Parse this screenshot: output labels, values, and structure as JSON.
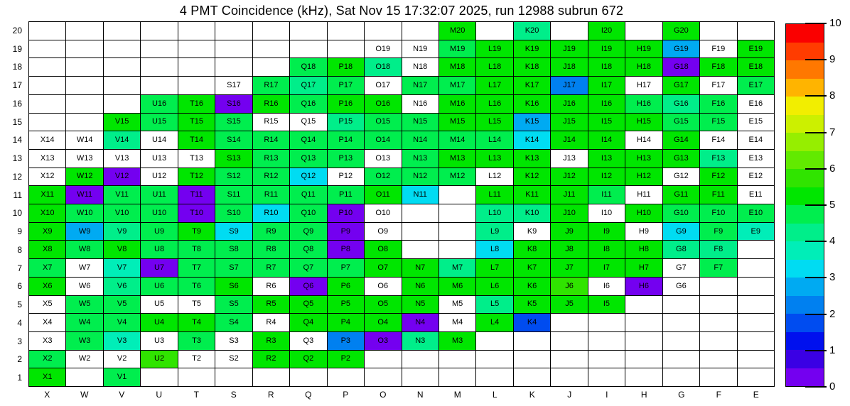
{
  "title": "4 PMT Coincidence (kHz), Sat Nov 15 17:32:07 2025, run 12988 subrun 672",
  "chart_data": {
    "type": "heatmap",
    "unit": "kHz",
    "columns": [
      "X",
      "W",
      "V",
      "U",
      "T",
      "S",
      "R",
      "Q",
      "P",
      "O",
      "N",
      "M",
      "L",
      "K",
      "J",
      "I",
      "H",
      "G",
      "F",
      "E"
    ],
    "rows": [
      20,
      19,
      18,
      17,
      16,
      15,
      14,
      13,
      12,
      11,
      10,
      9,
      8,
      7,
      6,
      5,
      4,
      3,
      2,
      1
    ],
    "value_range": [
      0,
      10
    ],
    "colorbar_ticks": [
      10,
      9,
      8,
      7,
      6,
      5,
      4,
      3,
      2,
      1,
      0
    ],
    "palette_note": "20 bins of 0.5 from value 0 (index 0) to 10 (index 19)",
    "palette": [
      "#7400f0",
      "#3a00e4",
      "#0010ee",
      "#004cf0",
      "#0080f0",
      "#00aaf2",
      "#00dcf2",
      "#00eeb8",
      "#00ee8a",
      "#00ee4e",
      "#00e600",
      "#30e400",
      "#62ea00",
      "#96ee00",
      "#ccf000",
      "#f2ee00",
      "#ffb400",
      "#ff7800",
      "#ff3c00",
      "#fa0000"
    ],
    "cells": [
      [
        null,
        null,
        null,
        null,
        null,
        null,
        null,
        null,
        null,
        null,
        null,
        [
          "M20",
          5.2
        ],
        null,
        [
          "K20",
          4.2
        ],
        null,
        [
          "I20",
          5.2
        ],
        null,
        [
          "G20",
          5.2
        ],
        null,
        null
      ],
      [
        null,
        null,
        null,
        null,
        null,
        null,
        null,
        null,
        null,
        [
          "O19",
          null
        ],
        [
          "N19",
          null
        ],
        [
          "M19",
          4.7
        ],
        [
          "L19",
          5.2
        ],
        [
          "K19",
          5.2
        ],
        [
          "J19",
          5.2
        ],
        [
          "I19",
          5.2
        ],
        [
          "H19",
          5.2
        ],
        [
          "G19",
          2.7
        ],
        [
          "F19",
          null
        ],
        [
          "E19",
          5.2
        ]
      ],
      [
        null,
        null,
        null,
        null,
        null,
        null,
        null,
        [
          "Q18",
          4.7
        ],
        [
          "P18",
          5.2
        ],
        [
          "O18",
          4.2
        ],
        [
          "N18",
          null
        ],
        [
          "M18",
          5.2
        ],
        [
          "L18",
          5.2
        ],
        [
          "K18",
          5.2
        ],
        [
          "J18",
          5.2
        ],
        [
          "I18",
          5.2
        ],
        [
          "H18",
          5.2
        ],
        [
          "G18",
          0.3
        ],
        [
          "F18",
          5.2
        ],
        [
          "E18",
          5.2
        ]
      ],
      [
        null,
        null,
        null,
        null,
        null,
        [
          "S17",
          null
        ],
        [
          "R17",
          4.7
        ],
        [
          "Q17",
          4.2
        ],
        [
          "P17",
          4.7
        ],
        [
          "O17",
          null
        ],
        [
          "N17",
          4.7
        ],
        [
          "M17",
          4.7
        ],
        [
          "L17",
          5.2
        ],
        [
          "K17",
          5.2
        ],
        [
          "J17",
          2.2
        ],
        [
          "I17",
          5.2
        ],
        [
          "H17",
          null
        ],
        [
          "G17",
          5.2
        ],
        [
          "F17",
          null
        ],
        [
          "E17",
          4.7
        ]
      ],
      [
        null,
        null,
        null,
        [
          "U16",
          4.7
        ],
        [
          "T16",
          5.2
        ],
        [
          "S16",
          0.3
        ],
        [
          "R16",
          5.2
        ],
        [
          "Q16",
          4.7
        ],
        [
          "P16",
          5.2
        ],
        [
          "O16",
          5.2
        ],
        [
          "N16",
          null
        ],
        [
          "M16",
          5.2
        ],
        [
          "L16",
          5.2
        ],
        [
          "K16",
          5.2
        ],
        [
          "J16",
          5.2
        ],
        [
          "I16",
          5.2
        ],
        [
          "H16",
          4.7
        ],
        [
          "G16",
          4.2
        ],
        [
          "F16",
          4.7
        ],
        [
          "E16",
          null
        ]
      ],
      [
        null,
        null,
        [
          "V15",
          5.2
        ],
        [
          "U15",
          4.7
        ],
        [
          "T15",
          5.2
        ],
        [
          "S15",
          4.7
        ],
        [
          "R15",
          null
        ],
        [
          "Q15",
          null
        ],
        [
          "P15",
          4.2
        ],
        [
          "O15",
          4.7
        ],
        [
          "N15",
          4.7
        ],
        [
          "M15",
          5.2
        ],
        [
          "L15",
          5.2
        ],
        [
          "K15",
          2.7
        ],
        [
          "J15",
          5.2
        ],
        [
          "I15",
          5.2
        ],
        [
          "H15",
          5.2
        ],
        [
          "G15",
          4.7
        ],
        [
          "F15",
          4.7
        ],
        [
          "E15",
          null
        ]
      ],
      [
        [
          "X14",
          null
        ],
        [
          "W14",
          null
        ],
        [
          "V14",
          4.2
        ],
        [
          "U14",
          null
        ],
        [
          "T14",
          5.2
        ],
        [
          "S14",
          4.7
        ],
        [
          "R14",
          4.7
        ],
        [
          "Q14",
          4.7
        ],
        [
          "P14",
          4.7
        ],
        [
          "O14",
          4.7
        ],
        [
          "N14",
          4.7
        ],
        [
          "M14",
          4.7
        ],
        [
          "L14",
          4.7
        ],
        [
          "K14",
          3.4
        ],
        [
          "J14",
          5.2
        ],
        [
          "I14",
          5.2
        ],
        [
          "H14",
          null
        ],
        [
          "G14",
          5.2
        ],
        [
          "F14",
          null
        ],
        [
          "E14",
          null
        ]
      ],
      [
        [
          "X13",
          null
        ],
        [
          "W13",
          null
        ],
        [
          "V13",
          null
        ],
        [
          "U13",
          null
        ],
        [
          "T13",
          null
        ],
        [
          "S13",
          5.2
        ],
        [
          "R13",
          4.7
        ],
        [
          "Q13",
          4.7
        ],
        [
          "P13",
          4.7
        ],
        [
          "O13",
          null
        ],
        [
          "N13",
          4.7
        ],
        [
          "M13",
          5.2
        ],
        [
          "L13",
          5.2
        ],
        [
          "K13",
          5.2
        ],
        [
          "J13",
          null
        ],
        [
          "I13",
          5.2
        ],
        [
          "H13",
          5.2
        ],
        [
          "G13",
          5.2
        ],
        [
          "F13",
          4.2
        ],
        [
          "E13",
          null
        ]
      ],
      [
        [
          "X12",
          null
        ],
        [
          "W12",
          5.2
        ],
        [
          "V12",
          0.3
        ],
        [
          "U12",
          null
        ],
        [
          "T12",
          5.2
        ],
        [
          "S12",
          4.7
        ],
        [
          "R12",
          4.7
        ],
        [
          "Q12",
          3.4
        ],
        [
          "P12",
          null
        ],
        [
          "O12",
          4.7
        ],
        [
          "N12",
          4.7
        ],
        [
          "M12",
          4.7
        ],
        [
          "L12",
          null
        ],
        [
          "K12",
          5.2
        ],
        [
          "J12",
          5.2
        ],
        [
          "I12",
          5.2
        ],
        [
          "H12",
          5.2
        ],
        [
          "G12",
          null
        ],
        [
          "F12",
          5.2
        ],
        [
          "E12",
          null
        ]
      ],
      [
        [
          "X11",
          5.2
        ],
        [
          "W11",
          0.3
        ],
        [
          "V11",
          4.7
        ],
        [
          "U11",
          4.7
        ],
        [
          "T11",
          0.3
        ],
        [
          "S11",
          4.7
        ],
        [
          "R11",
          4.7
        ],
        [
          "Q11",
          4.7
        ],
        [
          "P11",
          4.7
        ],
        [
          "O11",
          5.2
        ],
        [
          "N11",
          3.1
        ],
        null,
        [
          "L11",
          5.2
        ],
        [
          "K11",
          5.2
        ],
        [
          "J11",
          5.2
        ],
        [
          "I11",
          4.7
        ],
        [
          "H11",
          null
        ],
        [
          "G11",
          5.2
        ],
        [
          "F11",
          5.2
        ],
        [
          "E11",
          null
        ]
      ],
      [
        [
          "X10",
          5.2
        ],
        [
          "W10",
          4.7
        ],
        [
          "V10",
          4.7
        ],
        [
          "U10",
          4.7
        ],
        [
          "T10",
          0.3
        ],
        [
          "S10",
          4.7
        ],
        [
          "R10",
          3.1
        ],
        [
          "Q10",
          4.7
        ],
        [
          "P10",
          0.3
        ],
        [
          "O10",
          null
        ],
        null,
        null,
        [
          "L10",
          4.2
        ],
        [
          "K10",
          4.2
        ],
        [
          "J10",
          5.2
        ],
        [
          "I10",
          null
        ],
        [
          "H10",
          5.2
        ],
        [
          "G10",
          4.7
        ],
        [
          "F10",
          4.7
        ],
        [
          "E10",
          4.7
        ]
      ],
      [
        [
          "X9",
          5.2
        ],
        [
          "W9",
          2.7
        ],
        [
          "V9",
          4.2
        ],
        [
          "U9",
          4.7
        ],
        [
          "T9",
          5.2
        ],
        [
          "S9",
          3.1
        ],
        [
          "R9",
          4.7
        ],
        [
          "Q9",
          4.7
        ],
        [
          "P9",
          0.3
        ],
        [
          "O9",
          null
        ],
        null,
        null,
        [
          "L9",
          4.2
        ],
        [
          "K9",
          null
        ],
        [
          "J9",
          5.2
        ],
        [
          "I9",
          5.2
        ],
        [
          "H9",
          null
        ],
        [
          "G9",
          3.4
        ],
        [
          "F9",
          4.7
        ],
        [
          "E9",
          3.7
        ]
      ],
      [
        [
          "X8",
          5.2
        ],
        [
          "W8",
          4.7
        ],
        [
          "V8",
          5.2
        ],
        [
          "U8",
          4.7
        ],
        [
          "T8",
          4.7
        ],
        [
          "S8",
          4.7
        ],
        [
          "R8",
          4.7
        ],
        [
          "Q8",
          4.7
        ],
        [
          "P8",
          0.3
        ],
        [
          "O8",
          5.2
        ],
        null,
        null,
        [
          "L8",
          3.1
        ],
        [
          "K8",
          5.2
        ],
        [
          "J8",
          5.2
        ],
        [
          "I8",
          5.2
        ],
        [
          "H8",
          5.2
        ],
        [
          "G8",
          4.2
        ],
        [
          "F8",
          4.2
        ],
        null
      ],
      [
        [
          "X7",
          4.7
        ],
        [
          "W7",
          null
        ],
        [
          "V7",
          3.7
        ],
        [
          "U7",
          0.3
        ],
        [
          "T7",
          4.7
        ],
        [
          "S7",
          4.7
        ],
        [
          "R7",
          4.7
        ],
        [
          "Q7",
          4.7
        ],
        [
          "P7",
          4.7
        ],
        [
          "O7",
          5.2
        ],
        [
          "N7",
          5.2
        ],
        [
          "M7",
          4.2
        ],
        [
          "L7",
          5.2
        ],
        [
          "K7",
          5.2
        ],
        [
          "J7",
          5.2
        ],
        [
          "I7",
          5.2
        ],
        [
          "H7",
          5.2
        ],
        [
          "G7",
          null
        ],
        [
          "F7",
          4.7
        ],
        null
      ],
      [
        [
          "X6",
          5.2
        ],
        [
          "W6",
          null
        ],
        [
          "V6",
          4.2
        ],
        [
          "U6",
          4.7
        ],
        [
          "T6",
          4.7
        ],
        [
          "S6",
          5.2
        ],
        [
          "R6",
          null
        ],
        [
          "Q6",
          0.3
        ],
        [
          "P6",
          5.2
        ],
        [
          "O6",
          null
        ],
        [
          "N6",
          5.2
        ],
        [
          "M6",
          5.2
        ],
        [
          "L6",
          5.2
        ],
        [
          "K6",
          5.2
        ],
        [
          "J6",
          5.7
        ],
        [
          "I6",
          null
        ],
        [
          "H6",
          0.3
        ],
        [
          "G6",
          null
        ],
        null,
        null
      ],
      [
        [
          "X5",
          null
        ],
        [
          "W5",
          4.7
        ],
        [
          "V5",
          4.7
        ],
        [
          "U5",
          null
        ],
        [
          "T5",
          null
        ],
        [
          "S5",
          4.7
        ],
        [
          "R5",
          5.2
        ],
        [
          "Q5",
          5.2
        ],
        [
          "P5",
          5.2
        ],
        [
          "O5",
          5.2
        ],
        [
          "N5",
          5.2
        ],
        [
          "M5",
          null
        ],
        [
          "L5",
          4.2
        ],
        [
          "K5",
          5.2
        ],
        [
          "J5",
          5.2
        ],
        [
          "I5",
          5.2
        ],
        null,
        null,
        null,
        null
      ],
      [
        [
          "X4",
          null
        ],
        [
          "W4",
          4.7
        ],
        [
          "V4",
          4.7
        ],
        [
          "U4",
          5.2
        ],
        [
          "T4",
          5.2
        ],
        [
          "S4",
          4.7
        ],
        [
          "R4",
          null
        ],
        [
          "Q4",
          5.2
        ],
        [
          "P4",
          5.2
        ],
        [
          "O4",
          5.2
        ],
        [
          "N4",
          0.3
        ],
        [
          "M4",
          null
        ],
        [
          "L4",
          5.2
        ],
        [
          "K4",
          1.7
        ],
        null,
        null,
        null,
        null,
        null,
        null
      ],
      [
        [
          "X3",
          null
        ],
        [
          "W3",
          4.7
        ],
        [
          "V3",
          3.7
        ],
        [
          "U3",
          null
        ],
        [
          "T3",
          4.7
        ],
        [
          "S3",
          null
        ],
        [
          "R3",
          5.2
        ],
        [
          "Q3",
          null
        ],
        [
          "P3",
          2.2
        ],
        [
          "O3",
          0.3
        ],
        [
          "N3",
          4.2
        ],
        [
          "M3",
          5.2
        ],
        null,
        null,
        null,
        null,
        null,
        null,
        null,
        null
      ],
      [
        [
          "X2",
          4.7
        ],
        [
          "W2",
          null
        ],
        [
          "V2",
          null
        ],
        [
          "U2",
          5.7
        ],
        [
          "T2",
          null
        ],
        [
          "S2",
          null
        ],
        [
          "R2",
          5.2
        ],
        [
          "Q2",
          5.2
        ],
        [
          "P2",
          5.2
        ],
        null,
        null,
        null,
        null,
        null,
        null,
        null,
        null,
        null,
        null,
        null
      ],
      [
        [
          "X1",
          5.2
        ],
        null,
        [
          "V1",
          4.7
        ],
        null,
        null,
        null,
        null,
        null,
        null,
        null,
        null,
        null,
        null,
        null,
        null,
        null,
        null,
        null,
        null,
        null
      ]
    ]
  }
}
